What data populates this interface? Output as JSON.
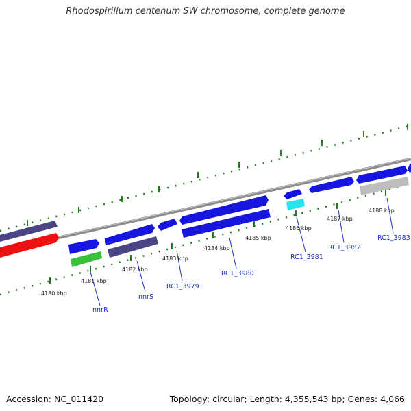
{
  "title": "Rhodospirillum centenum SW chromosome, complete genome",
  "footer": {
    "accession": "Accession: NC_011420",
    "summary": "Topology: circular; Length: 4,355,543 bp; Genes: 4,066"
  },
  "colors": {
    "backbone": "#8c8c8c",
    "tick": "#1e7d1e",
    "gene_blue": "#1616e0",
    "gene_slate": "#4a4686",
    "gene_red": "#ee1111",
    "gene_green": "#39c139",
    "gene_cyan": "#22e5ef",
    "gene_gray": "#bdbdbd",
    "label_blue": "#1a2fbf"
  },
  "kbp_labels": [
    "4180 kbp",
    "4181 kbp",
    "4182 kbp",
    "4183 kbp",
    "4184 kbp",
    "4185 kbp",
    "4186 kbp",
    "4187 kbp",
    "4188 kbp"
  ],
  "gene_labels": [
    "nnrR",
    "nnrS",
    "RC1_3979",
    "RC1_3980",
    "RC1_3981",
    "RC1_3982",
    "RC1_3983"
  ]
}
